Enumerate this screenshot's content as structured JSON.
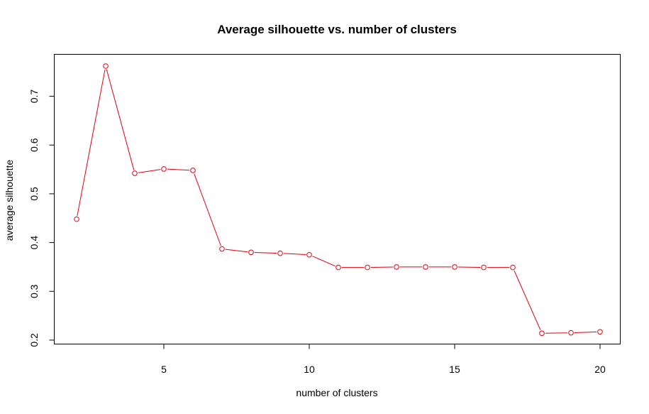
{
  "chart_data": {
    "type": "line",
    "title": "Average silhouette vs. number of clusters",
    "xlabel": "number of clusters",
    "ylabel": "average silhouette",
    "xlim": [
      2,
      20
    ],
    "ylim": [
      0.213,
      0.762
    ],
    "x_ticks": [
      5,
      10,
      15,
      20
    ],
    "y_ticks": [
      0.2,
      0.3,
      0.4,
      0.5,
      0.6,
      0.7
    ],
    "grid": false,
    "legend": "none",
    "series": [
      {
        "color": "#e0000f",
        "marker": "open-circle",
        "x": [
          2,
          3,
          4,
          5,
          6,
          7,
          8,
          9,
          10,
          11,
          12,
          13,
          14,
          15,
          16,
          17,
          18,
          19,
          20
        ],
        "y": [
          0.448,
          0.762,
          0.542,
          0.551,
          0.548,
          0.387,
          0.38,
          0.378,
          0.375,
          0.349,
          0.349,
          0.35,
          0.35,
          0.35,
          0.349,
          0.349,
          0.214,
          0.215,
          0.217
        ]
      }
    ]
  }
}
